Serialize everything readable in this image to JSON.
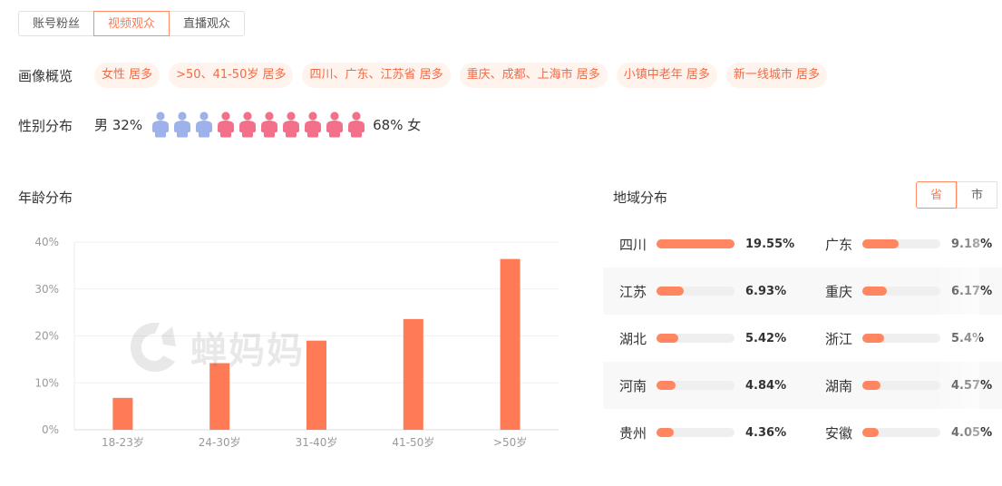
{
  "tabs": [
    {
      "label": "账号粉丝",
      "active": false
    },
    {
      "label": "视频观众",
      "active": true
    },
    {
      "label": "直播观众",
      "active": false
    }
  ],
  "portrait": {
    "label": "画像概览",
    "tags": [
      "女性 居多",
      ">50、41-50岁 居多",
      "四川、广东、江苏省 居多",
      "重庆、成都、上海市 居多",
      "小镇中老年 居多",
      "新一线城市 居多"
    ]
  },
  "gender": {
    "label": "性别分布",
    "male_text": "男 32%",
    "female_text": "68% 女",
    "male_icons": 3,
    "female_icons": 7,
    "male_color": "#9db1ea",
    "female_color": "#f2708a"
  },
  "age": {
    "title": "年龄分布",
    "chart_data": {
      "type": "bar",
      "categories": [
        "18-23岁",
        "24-30岁",
        "31-40岁",
        "41-50岁",
        ">50岁"
      ],
      "values": [
        6.8,
        14.2,
        19.0,
        23.6,
        36.4
      ],
      "ylim": [
        0,
        40
      ],
      "yticks": [
        0,
        10,
        20,
        30,
        40
      ],
      "ytick_labels": [
        "0%",
        "10%",
        "20%",
        "30%",
        "40%"
      ],
      "bar_color": "#ff7b55",
      "xlabel": "",
      "ylabel": ""
    }
  },
  "watermark": {
    "text": "蝉妈妈"
  },
  "region": {
    "title": "地域分布",
    "toggle": [
      "省",
      "市"
    ],
    "rows": [
      [
        {
          "name": "四川",
          "pct": "19.55%",
          "value": 19.55
        },
        {
          "name": "广东",
          "pct": "9.18%",
          "value": 9.18
        }
      ],
      [
        {
          "name": "江苏",
          "pct": "6.93%",
          "value": 6.93
        },
        {
          "name": "重庆",
          "pct": "6.17%",
          "value": 6.17
        }
      ],
      [
        {
          "name": "湖北",
          "pct": "5.42%",
          "value": 5.42
        },
        {
          "name": "浙江",
          "pct": "5.4%",
          "value": 5.4
        }
      ],
      [
        {
          "name": "河南",
          "pct": "4.84%",
          "value": 4.84
        },
        {
          "name": "湖南",
          "pct": "4.57%",
          "value": 4.57
        }
      ],
      [
        {
          "name": "贵州",
          "pct": "4.36%",
          "value": 4.36
        },
        {
          "name": "安徽",
          "pct": "4.05%",
          "value": 4.05
        }
      ]
    ]
  }
}
